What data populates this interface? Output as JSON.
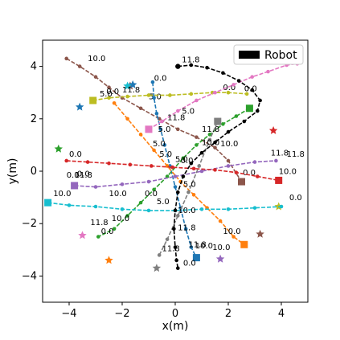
{
  "chart_data": {
    "type": "scatter",
    "title": "",
    "xlabel": "x(m)",
    "ylabel": "y(m)",
    "xlim": [
      -5,
      5
    ],
    "ylim": [
      -5,
      5
    ],
    "xticks": [
      -4,
      -2,
      0,
      2,
      4
    ],
    "yticks": [
      -4,
      -2,
      0,
      2,
      4
    ],
    "xtick_labels": [
      "−4",
      "−2",
      "0",
      "2",
      "4"
    ],
    "ytick_labels": [
      "−4",
      "−2",
      "0",
      "2",
      "4"
    ],
    "grid": false,
    "legend": {
      "placement": "top-right",
      "entries": [
        {
          "label": "Robot",
          "color": "#000000"
        }
      ]
    },
    "robot": {
      "name": "Robot",
      "color": "#000000",
      "x": [
        0.1,
        0.6,
        1.2,
        1.8,
        2.4,
        2.9,
        3.2,
        3.1,
        2.6,
        2.0,
        1.5,
        1.0,
        0.6,
        0.3,
        0.1,
        0.0,
        -0.05,
        0.0,
        0.05,
        0.1
      ],
      "y": [
        4.0,
        4.05,
        3.95,
        3.75,
        3.45,
        3.1,
        2.7,
        2.3,
        1.9,
        1.5,
        1.1,
        0.7,
        0.3,
        -0.2,
        -0.8,
        -1.5,
        -2.2,
        -2.9,
        -3.4,
        -3.7
      ],
      "annotations": [
        {
          "text": "11.8",
          "x": 0.25,
          "y": 4.15
        },
        {
          "text": "10.0",
          "x": 1.7,
          "y": 0.95
        }
      ]
    },
    "agents": [
      {
        "color": "#8c564b",
        "x": [
          -4.1,
          -3.6,
          -3.0,
          -2.5,
          -2.0,
          -1.3,
          -0.6,
          0.1,
          0.8,
          1.5,
          2.0,
          2.5
        ],
        "y": [
          4.3,
          4.0,
          3.6,
          3.2,
          2.8,
          2.4,
          2.0,
          1.6,
          1.3,
          0.9,
          0.4,
          -0.4
        ],
        "start": "end",
        "labels": [
          {
            "text": "10.0",
            "x": -3.3,
            "y": 4.2
          },
          {
            "text": "5.0",
            "x": -1.0,
            "y": 2.75
          },
          {
            "text": "0.0",
            "x": 2.55,
            "y": -0.15
          }
        ],
        "goal": [
          -1.7,
          3.25
        ]
      },
      {
        "color": "#1f77b4",
        "x": [
          -0.85,
          -0.8,
          -0.7,
          -0.55,
          -0.4,
          -0.2,
          0.0,
          0.2,
          0.4,
          0.6,
          0.8
        ],
        "y": [
          3.4,
          2.8,
          2.2,
          1.6,
          1.0,
          0.2,
          -0.6,
          -1.4,
          -2.2,
          -2.9,
          -3.3
        ],
        "start": "end",
        "labels": [
          {
            "text": "0.0",
            "x": -0.8,
            "y": 3.45
          },
          {
            "text": "5.0",
            "x": -0.65,
            "y": 1.5
          },
          {
            "text": "11.8",
            "x": 0.1,
            "y": -2.25
          },
          {
            "text": "10.0",
            "x": 0.75,
            "y": -2.95
          }
        ],
        "goal": [
          -1.6,
          3.3
        ]
      },
      {
        "color": "#bcbd22",
        "x": [
          -3.1,
          -2.5,
          -1.8,
          -1.0,
          -0.2,
          0.6,
          1.4,
          2.0,
          2.7
        ],
        "y": [
          2.7,
          2.8,
          2.85,
          2.9,
          2.9,
          2.95,
          3.0,
          3.0,
          2.95
        ],
        "start": "start",
        "labels": [
          {
            "text": "5.0",
            "x": -2.85,
            "y": 2.85
          },
          {
            "text": "0.0",
            "x": 1.8,
            "y": 3.1
          }
        ],
        "goal": [
          3.9,
          -1.35
        ]
      },
      {
        "color": "#e377c2",
        "x": [
          -1.0,
          -0.5,
          0.1,
          0.8,
          1.5,
          2.2,
          2.9,
          3.5,
          4.2,
          4.6
        ],
        "y": [
          1.6,
          1.9,
          2.3,
          2.7,
          3.0,
          3.3,
          3.6,
          3.8,
          4.05,
          4.1
        ],
        "start": "start",
        "labels": [
          {
            "text": "0.0",
            "x": 2.6,
            "y": 3.05
          }
        ],
        "goal": [
          -3.5,
          -2.45
        ]
      },
      {
        "color": "#ff7f0e",
        "x": [
          -2.3,
          -1.8,
          -1.3,
          -0.8,
          -0.3,
          0.2,
          0.7,
          1.2,
          1.7,
          2.2,
          2.6
        ],
        "y": [
          2.6,
          2.0,
          1.4,
          0.8,
          0.2,
          -0.4,
          -0.9,
          -1.4,
          -1.9,
          -2.5,
          -2.8
        ],
        "start": "end",
        "labels": [
          {
            "text": "5.0",
            "x": -0.6,
            "y": 0.55
          },
          {
            "text": "10.0",
            "x": 1.8,
            "y": -2.4
          }
        ],
        "goal": [
          -2.5,
          -3.4
        ]
      },
      {
        "color": "#2ca02c",
        "x": [
          2.8,
          2.3,
          1.8,
          1.3,
          0.8,
          0.3,
          -0.3,
          -0.8,
          -1.3,
          -1.8,
          -2.3,
          -2.9
        ],
        "y": [
          2.4,
          2.1,
          1.8,
          1.4,
          1.0,
          0.5,
          -0.2,
          -0.7,
          -1.2,
          -1.7,
          -2.2,
          -2.5
        ],
        "start": "start",
        "labels": [
          {
            "text": "5.0",
            "x": 0.25,
            "y": 2.2
          },
          {
            "text": "0.0",
            "x": -1.15,
            "y": -0.95
          },
          {
            "text": "11.8",
            "x": -3.2,
            "y": -2.05
          },
          {
            "text": "10.0",
            "x": -2.4,
            "y": -1.9
          }
        ],
        "goal": [
          -4.4,
          0.85
        ]
      },
      {
        "color": "#9467bd",
        "x": [
          -3.8,
          -3.0,
          -2.0,
          -1.0,
          0.0,
          1.0,
          2.0,
          3.0,
          3.8
        ],
        "y": [
          -0.55,
          -0.6,
          -0.5,
          -0.4,
          -0.2,
          0.0,
          0.2,
          0.35,
          0.4
        ],
        "start": "start",
        "labels": [
          {
            "text": "0.0",
            "x": -4.1,
            "y": -0.25
          },
          {
            "text": "10.0",
            "x": -2.5,
            "y": -0.95
          },
          {
            "text": "11.8",
            "x": 3.6,
            "y": 0.6
          }
        ],
        "goal": [
          1.7,
          -3.35
        ]
      },
      {
        "color": "#d62728",
        "x": [
          -4.1,
          -3.3,
          -2.5,
          -1.7,
          -0.9,
          -0.1,
          0.7,
          1.5,
          2.3,
          3.1,
          3.9
        ],
        "y": [
          0.4,
          0.35,
          0.3,
          0.25,
          0.2,
          0.15,
          0.1,
          0.05,
          -0.05,
          -0.2,
          -0.35
        ],
        "start": "end",
        "labels": [
          {
            "text": "0.0",
            "x": -4.0,
            "y": 0.55
          },
          {
            "text": "5.0",
            "x": 0.0,
            "y": 0.35
          },
          {
            "text": "10.0",
            "x": 3.9,
            "y": -0.1
          }
        ],
        "goal": [
          3.7,
          1.55
        ]
      },
      {
        "color": "#17becf",
        "x": [
          -4.8,
          -4.0,
          -3.0,
          -2.0,
          -1.0,
          0.0,
          1.0,
          2.0,
          3.0,
          4.0
        ],
        "y": [
          -1.2,
          -1.3,
          -1.35,
          -1.45,
          -1.5,
          -1.5,
          -1.45,
          -1.45,
          -1.4,
          -1.35
        ],
        "start": "start",
        "labels": [
          {
            "text": "10.0",
            "x": -4.6,
            "y": -0.95
          },
          {
            "text": "5.0",
            "x": -0.7,
            "y": -1.25
          },
          {
            "text": "10.0",
            "x": 0.1,
            "y": -1.6
          },
          {
            "text": "0.0",
            "x": 4.3,
            "y": -1.1
          }
        ],
        "goal": [
          -1.8,
          3.25
        ]
      },
      {
        "color": "#7f7f7f",
        "x": [
          -0.6,
          -0.3,
          0.1,
          0.5,
          0.9,
          1.3,
          1.6
        ],
        "y": [
          -3.2,
          -2.6,
          -1.7,
          -0.8,
          0.2,
          1.2,
          1.9
        ],
        "start": "end",
        "labels": [
          {
            "text": "11.8",
            "x": -0.5,
            "y": -3.05
          },
          {
            "text": "11.8",
            "x": 1.0,
            "y": 1.5
          }
        ],
        "goal": [
          -0.7,
          -3.7
        ]
      }
    ],
    "star_goals": [
      {
        "color": "#1f77b4",
        "x": -3.6,
        "y": 2.45
      },
      {
        "color": "#8c564b",
        "x": 3.2,
        "y": -2.4
      }
    ],
    "extra_labels": [
      {
        "text": "11.8",
        "x": -3.8,
        "y": -0.25
      },
      {
        "text": "0.0",
        "x": -3.7,
        "y": -0.2
      },
      {
        "text": "0.0",
        "x": -2.6,
        "y": 2.95
      },
      {
        "text": "11.8",
        "x": -2.0,
        "y": 3.0
      },
      {
        "text": "10.0",
        "x": 1.0,
        "y": 1.0
      },
      {
        "text": "10.0",
        "x": 1.4,
        "y": -3.0
      },
      {
        "text": "11.8",
        "x": 0.5,
        "y": -2.9
      },
      {
        "text": "0.0",
        "x": 0.3,
        "y": -3.6
      },
      {
        "text": "11.8",
        "x": 4.2,
        "y": 0.55
      },
      {
        "text": "5.0",
        "x": -0.85,
        "y": 0.95
      },
      {
        "text": "0.0",
        "x": 0.2,
        "y": 0.3
      },
      {
        "text": "5.0",
        "x": 0.3,
        "y": -0.6
      },
      {
        "text": "11.8",
        "x": -0.3,
        "y": 1.95
      },
      {
        "text": "0.0",
        "x": -2.8,
        "y": -2.4
      }
    ]
  }
}
